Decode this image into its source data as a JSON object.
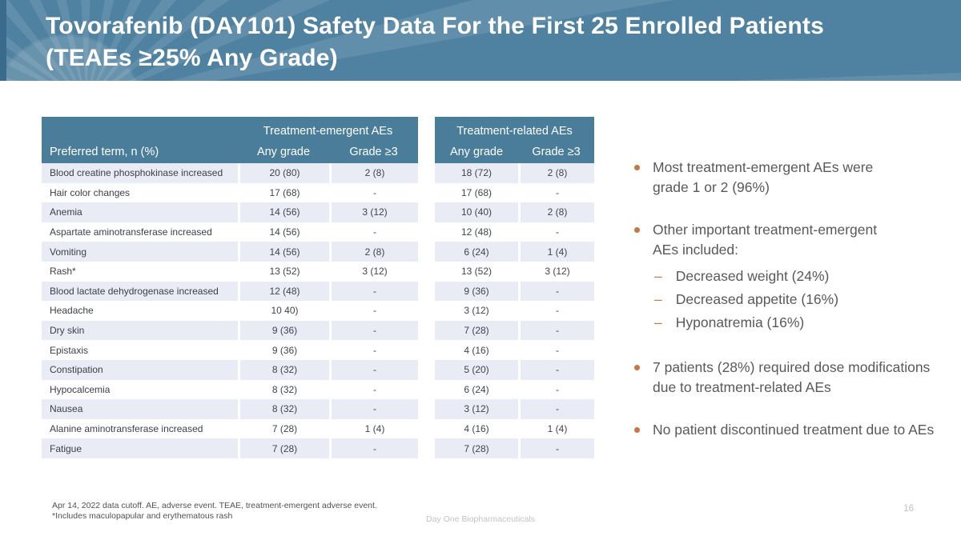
{
  "header": {
    "title_line1": "Tovorafenib (DAY101) Safety Data For the First 25 Enrolled Patients",
    "title_line2": "(TEAEs ≥25% Any Grade)"
  },
  "table": {
    "term_header": "Preferred term, n (%)",
    "group_emergent": "Treatment-emergent AEs",
    "group_related": "Treatment-related AEs",
    "col_any_grade": "Any grade",
    "col_grade3": "Grade ≥3",
    "rows": [
      {
        "term": "Blood creatine phosphokinase increased",
        "te_any": "20 (80)",
        "te_g3": "2 (8)",
        "tr_any": "18 (72)",
        "tr_g3": "2 (8)"
      },
      {
        "term": "Hair color changes",
        "te_any": "17 (68)",
        "te_g3": "-",
        "tr_any": "17 (68)",
        "tr_g3": "-"
      },
      {
        "term": "Anemia",
        "te_any": "14 (56)",
        "te_g3": "3 (12)",
        "tr_any": "10 (40)",
        "tr_g3": "2 (8)"
      },
      {
        "term": "Aspartate aminotransferase increased",
        "te_any": "14 (56)",
        "te_g3": "-",
        "tr_any": "12 (48)",
        "tr_g3": "-"
      },
      {
        "term": "Vomiting",
        "te_any": "14 (56)",
        "te_g3": "2 (8)",
        "tr_any": "6 (24)",
        "tr_g3": "1 (4)"
      },
      {
        "term": "Rash*",
        "te_any": "13 (52)",
        "te_g3": "3 (12)",
        "tr_any": "13 (52)",
        "tr_g3": "3 (12)"
      },
      {
        "term": "Blood lactate dehydrogenase increased",
        "te_any": "12 (48)",
        "te_g3": "-",
        "tr_any": "9 (36)",
        "tr_g3": "-"
      },
      {
        "term": "Headache",
        "te_any": "10 40)",
        "te_g3": "-",
        "tr_any": "3 (12)",
        "tr_g3": "-"
      },
      {
        "term": "Dry skin",
        "te_any": "9 (36)",
        "te_g3": "-",
        "tr_any": "7 (28)",
        "tr_g3": "-"
      },
      {
        "term": "Epistaxis",
        "te_any": "9 (36)",
        "te_g3": "-",
        "tr_any": "4 (16)",
        "tr_g3": "-"
      },
      {
        "term": "Constipation",
        "te_any": "8 (32)",
        "te_g3": "-",
        "tr_any": "5 (20)",
        "tr_g3": "-"
      },
      {
        "term": "Hypocalcemia",
        "te_any": "8 (32)",
        "te_g3": "-",
        "tr_any": "6 (24)",
        "tr_g3": "-"
      },
      {
        "term": "Nausea",
        "te_any": "8 (32)",
        "te_g3": "-",
        "tr_any": "3 (12)",
        "tr_g3": "-"
      },
      {
        "term": "Alanine aminotransferase increased",
        "te_any": "7 (28)",
        "te_g3": "1 (4)",
        "tr_any": "4 (16)",
        "tr_g3": "1 (4)"
      },
      {
        "term": "Fatigue",
        "te_any": "7 (28)",
        "te_g3": "-",
        "tr_any": "7 (28)",
        "tr_g3": "-"
      }
    ]
  },
  "bullets": [
    {
      "type": "bullet",
      "text": "Most treatment-emergent AEs were\ngrade 1 or 2 (96%)"
    },
    {
      "type": "bullet",
      "text": "Other important treatment-emergent\nAEs included:"
    },
    {
      "type": "dash",
      "text": "Decreased weight (24%)"
    },
    {
      "type": "dash",
      "text": "Decreased appetite (16%)"
    },
    {
      "type": "dash",
      "text": "Hyponatremia (16%)"
    },
    {
      "type": "bullet",
      "text": "7 patients (28%) required dose modifications\ndue to treatment-related AEs"
    },
    {
      "type": "bullet",
      "text": "No patient discontinued treatment due to AEs"
    }
  ],
  "footnotes": {
    "line1": "Apr 14, 2022 data cutoff. AE, adverse event. TEAE, treatment-emergent adverse event.",
    "line2": "*Includes maculopapular and erythematous rash"
  },
  "footer": {
    "company": "Day One Biopharmaceuticals",
    "page": "16"
  },
  "colors": {
    "header_teal": "#4F81A0",
    "header_edge": "#3A6B8C",
    "table_header_teal": "#497D9A",
    "row_stripe": "#E9EBF5",
    "bullet_orange": "#C8773E",
    "body_text": "#58595B",
    "footer_gray": "#C2C3C5"
  }
}
